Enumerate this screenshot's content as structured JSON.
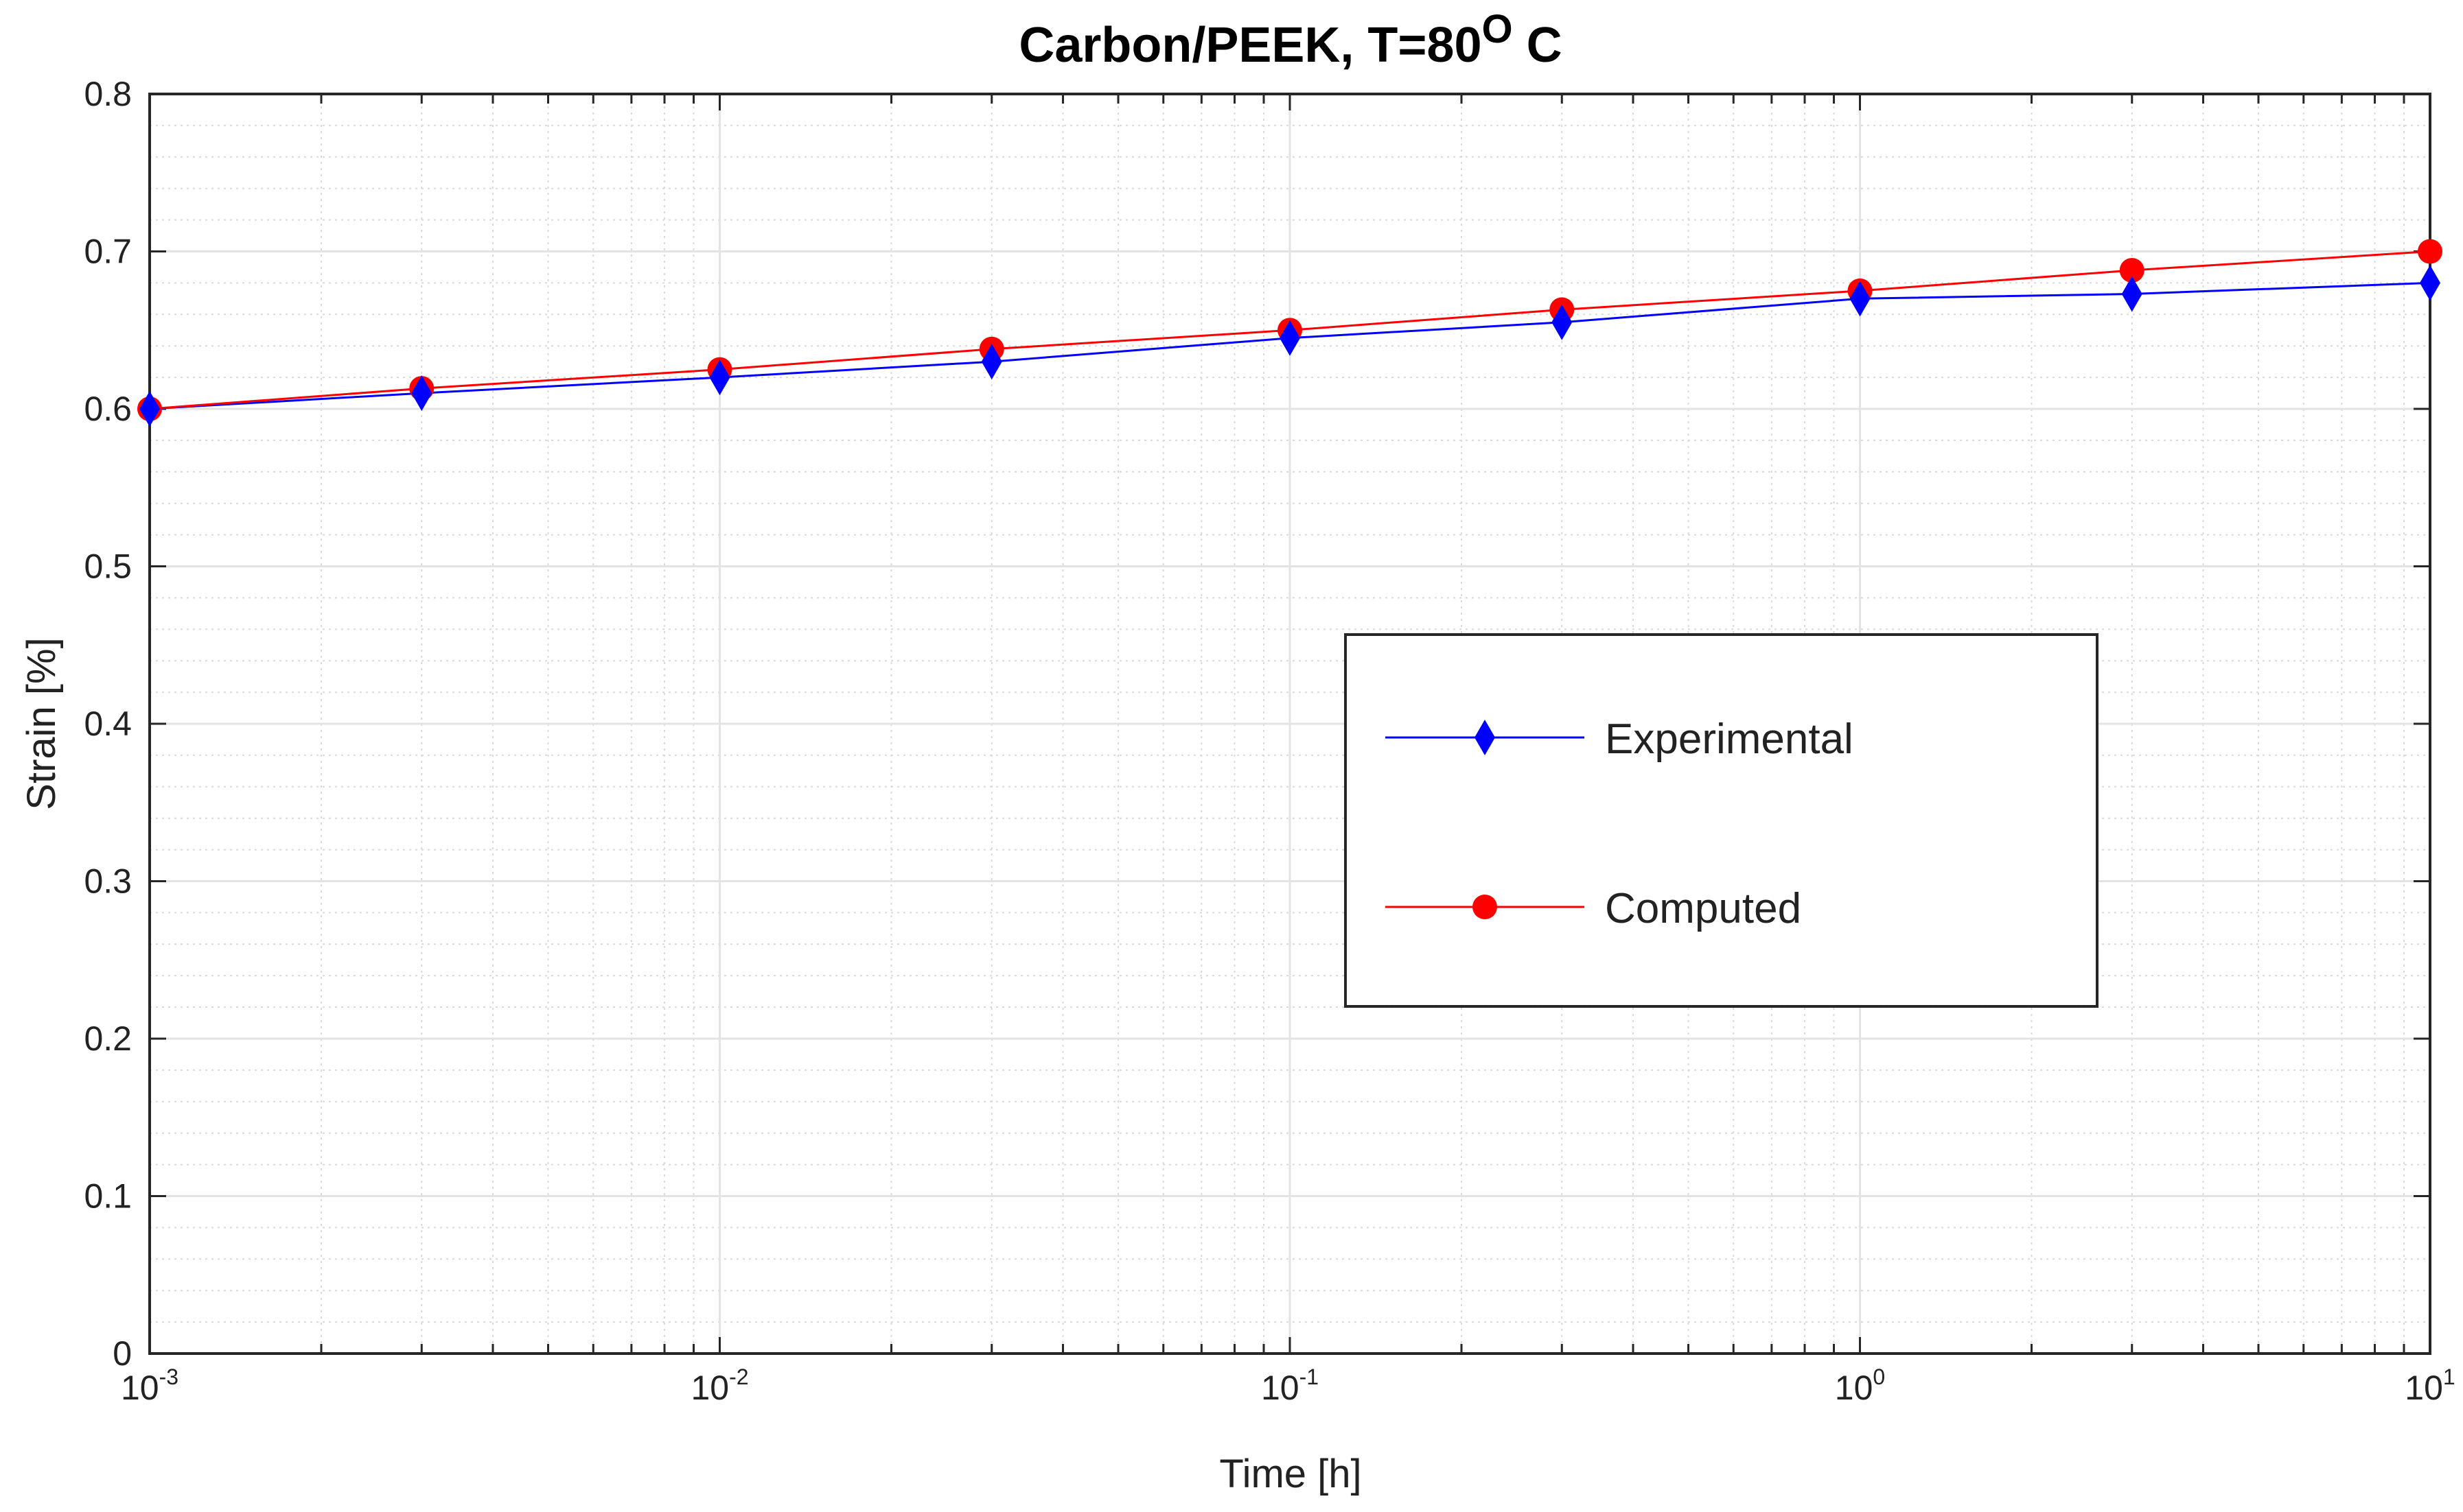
{
  "chart_data": {
    "type": "line",
    "title": "Carbon/PEEK, T=80",
    "title_superscript": "O",
    "title_suffix": " C",
    "xlabel": "Time [h]",
    "ylabel": "Strain [%]",
    "xscale": "log",
    "xlim": [
      0.001,
      10
    ],
    "ylim": [
      0,
      0.8
    ],
    "grid": true,
    "minor_grid": true,
    "x_ticks": [
      {
        "base": "10",
        "exp": "-3",
        "value": 0.001
      },
      {
        "base": "10",
        "exp": "-2",
        "value": 0.01
      },
      {
        "base": "10",
        "exp": "-1",
        "value": 0.1
      },
      {
        "base": "10",
        "exp": "0",
        "value": 1
      },
      {
        "base": "10",
        "exp": "1",
        "value": 10
      }
    ],
    "y_ticks": [
      "0",
      "0.1",
      "0.2",
      "0.3",
      "0.4",
      "0.5",
      "0.6",
      "0.7",
      "0.8"
    ],
    "x": [
      0.001,
      0.003,
      0.01,
      0.03,
      0.1,
      0.3,
      1,
      3,
      10
    ],
    "series": [
      {
        "name": "Experimental",
        "color": "#0000ff",
        "marker": "diamond",
        "values": [
          0.6,
          0.61,
          0.62,
          0.63,
          0.645,
          0.655,
          0.67,
          0.673,
          0.68
        ]
      },
      {
        "name": "Computed",
        "color": "#ff0000",
        "marker": "circle",
        "values": [
          0.6,
          0.613,
          0.625,
          0.638,
          0.65,
          0.663,
          0.675,
          0.688,
          0.7
        ]
      }
    ],
    "legend_position": "center-right"
  }
}
